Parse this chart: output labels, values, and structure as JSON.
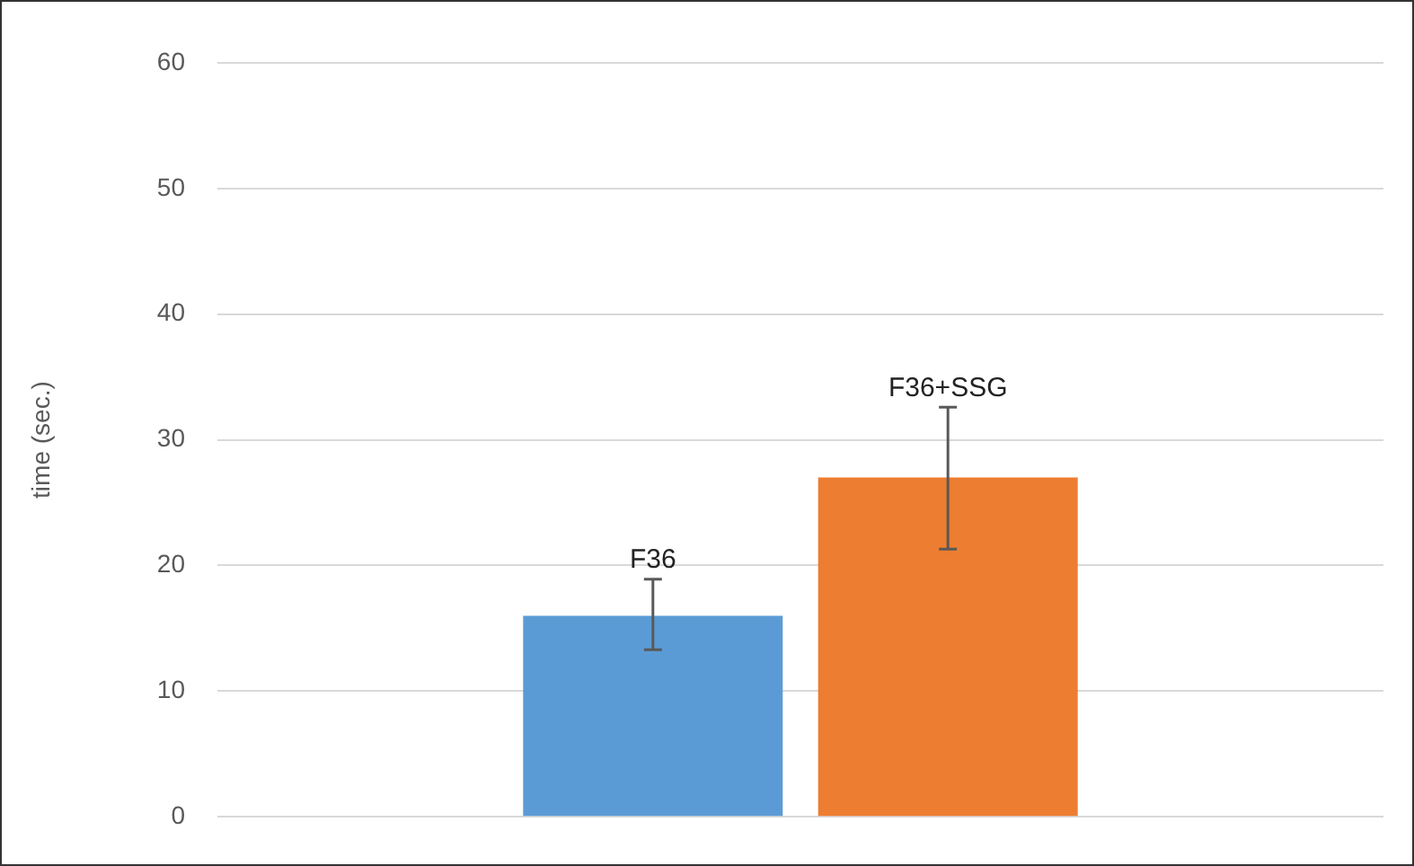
{
  "chart_data": {
    "type": "bar",
    "ylabel": "time (sec.)",
    "categories": [
      null
    ],
    "series": [
      {
        "name": "F36",
        "color": "#5b9bd5",
        "values": [
          16
        ],
        "errors": [
          [
            13.3,
            18.9
          ]
        ]
      },
      {
        "name": "F36+SSG",
        "color": "#ed7d31",
        "values": [
          27
        ],
        "errors": [
          [
            21.3,
            32.6
          ]
        ]
      }
    ],
    "ylim": [
      0,
      60
    ],
    "yticks": [
      0,
      10,
      20,
      30,
      40,
      50,
      60
    ],
    "grid": "y"
  }
}
